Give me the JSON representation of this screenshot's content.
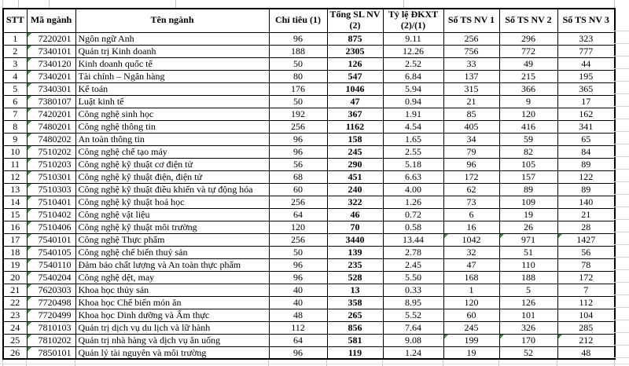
{
  "table": {
    "header": [
      "STT",
      "Mã ngành",
      "Tên ngành",
      "Chỉ tiêu (1)",
      "Tổng SL NV (2)",
      "Tỷ lệ ĐKXT (2)/(1)",
      "Số TS NV 1",
      "Số TS NV 2",
      "Số TS NV 3"
    ],
    "rows": [
      {
        "stt": "1",
        "code": "7220201",
        "name": "Ngôn ngữ Anh",
        "target": "96",
        "total": "875",
        "ratio": "9.11",
        "nv1": "256",
        "nv2": "296",
        "nv3": "323",
        "flag_nv": false
      },
      {
        "stt": "2",
        "code": "7340101",
        "name": "Quản trị Kinh doanh",
        "target": "188",
        "total": "2305",
        "ratio": "12.26",
        "nv1": "756",
        "nv2": "772",
        "nv3": "777",
        "flag_nv": false
      },
      {
        "stt": "3",
        "code": "7340120",
        "name": "Kinh doanh quốc tế",
        "target": "50",
        "total": "126",
        "ratio": "2.52",
        "nv1": "33",
        "nv2": "49",
        "nv3": "44",
        "flag_nv": false
      },
      {
        "stt": "4",
        "code": "7340201",
        "name": "Tài chính – Ngân hàng",
        "target": "80",
        "total": "547",
        "ratio": "6.84",
        "nv1": "137",
        "nv2": "215",
        "nv3": "195",
        "flag_nv": false
      },
      {
        "stt": "5",
        "code": "7340301",
        "name": "Kế toán",
        "target": "176",
        "total": "1046",
        "ratio": "5.94",
        "nv1": "315",
        "nv2": "366",
        "nv3": "365",
        "flag_nv": false
      },
      {
        "stt": "6",
        "code": "7380107",
        "name": "Luật kinh tế",
        "target": "50",
        "total": "47",
        "ratio": "0.94",
        "nv1": "21",
        "nv2": "9",
        "nv3": "17",
        "flag_nv": false
      },
      {
        "stt": "7",
        "code": "7420201",
        "name": "Công nghệ sinh học",
        "target": "192",
        "total": "367",
        "ratio": "1.91",
        "nv1": "85",
        "nv2": "120",
        "nv3": "162",
        "flag_nv": false
      },
      {
        "stt": "8",
        "code": "7480201",
        "name": "Công nghệ thông tin",
        "target": "256",
        "total": "1162",
        "ratio": "4.54",
        "nv1": "405",
        "nv2": "416",
        "nv3": "341",
        "flag_nv": false
      },
      {
        "stt": "9",
        "code": "7480202",
        "name": "An toàn thông tin",
        "target": "96",
        "total": "158",
        "ratio": "1.65",
        "nv1": "34",
        "nv2": "59",
        "nv3": "65",
        "flag_nv": false
      },
      {
        "stt": "10",
        "code": "7510202",
        "name": "Công nghệ chế tạo máy",
        "target": "96",
        "total": "245",
        "ratio": "2.55",
        "nv1": "79",
        "nv2": "82",
        "nv3": "84",
        "flag_nv": false
      },
      {
        "stt": "11",
        "code": "7510203",
        "name": "Công nghệ kỹ thuật cơ điện tử",
        "target": "56",
        "total": "290",
        "ratio": "5.18",
        "nv1": "96",
        "nv2": "105",
        "nv3": "89",
        "flag_nv": false
      },
      {
        "stt": "12",
        "code": "7510301",
        "name": "Công nghệ kỹ thuật điện, điện tử",
        "target": "68",
        "total": "451",
        "ratio": "6.63",
        "nv1": "172",
        "nv2": "157",
        "nv3": "122",
        "flag_nv": false
      },
      {
        "stt": "13",
        "code": "7510303",
        "name": "Công nghệ kỹ thuật điều khiển và tự động hóa",
        "target": "60",
        "total": "240",
        "ratio": "4.00",
        "nv1": "62",
        "nv2": "89",
        "nv3": "89",
        "flag_nv": false
      },
      {
        "stt": "14",
        "code": "7510401",
        "name": "Công nghệ kỹ thuật hoá học",
        "target": "256",
        "total": "322",
        "ratio": "1.26",
        "nv1": "73",
        "nv2": "109",
        "nv3": "140",
        "flag_nv": false
      },
      {
        "stt": "15",
        "code": "7510402",
        "name": "Công nghệ vật liệu",
        "target": "64",
        "total": "46",
        "ratio": "0.72",
        "nv1": "6",
        "nv2": "19",
        "nv3": "21",
        "flag_nv": false
      },
      {
        "stt": "16",
        "code": "7510406",
        "name": "Công nghệ kỹ thuật môi trường",
        "target": "120",
        "total": "70",
        "ratio": "0.58",
        "nv1": "16",
        "nv2": "26",
        "nv3": "28",
        "flag_nv": false
      },
      {
        "stt": "17",
        "code": "7540101",
        "name": "Công nghệ Thực phẩm",
        "target": "256",
        "total": "3440",
        "ratio": "13.44",
        "nv1": "1042",
        "nv2": "971",
        "nv3": "1427",
        "flag_nv": true
      },
      {
        "stt": "18",
        "code": "7540105",
        "name": "Công nghệ chế biến thuỷ sản",
        "target": "50",
        "total": "139",
        "ratio": "2.78",
        "nv1": "32",
        "nv2": "51",
        "nv3": "56",
        "flag_nv": false
      },
      {
        "stt": "19",
        "code": "7540110",
        "name": "Đảm bảo chất lượng và An toàn thực phẩm",
        "target": "96",
        "total": "235",
        "ratio": "2.45",
        "nv1": "47",
        "nv2": "110",
        "nv3": "78",
        "flag_nv": false
      },
      {
        "stt": "20",
        "code": "7540204",
        "name": "Công nghệ dệt, may",
        "target": "96",
        "total": "528",
        "ratio": "5.50",
        "nv1": "168",
        "nv2": "188",
        "nv3": "172",
        "flag_nv": false
      },
      {
        "stt": "21",
        "code": "7620303",
        "name": "Khoa học thủy sản",
        "target": "40",
        "total": "13",
        "ratio": "0.33",
        "nv1": "1",
        "nv2": "5",
        "nv3": "7",
        "flag_nv": false
      },
      {
        "stt": "22",
        "code": "7720498",
        "name": "Khoa học Chế biến món ăn",
        "target": "40",
        "total": "358",
        "ratio": "8.95",
        "nv1": "120",
        "nv2": "126",
        "nv3": "112",
        "flag_nv": false
      },
      {
        "stt": "23",
        "code": "7720499",
        "name": "Khoa học Dinh dưỡng và Ẩm thực",
        "target": "48",
        "total": "265",
        "ratio": "5.52",
        "nv1": "60",
        "nv2": "101",
        "nv3": "104",
        "flag_nv": false
      },
      {
        "stt": "24",
        "code": "7810103",
        "name": "Quản trị dịch vụ du lịch và lữ hành",
        "target": "112",
        "total": "856",
        "ratio": "7.64",
        "nv1": "245",
        "nv2": "326",
        "nv3": "285",
        "flag_nv": false
      },
      {
        "stt": "25",
        "code": "7810202",
        "name": "Quản trị nhà hàng và dịch vụ ăn uống",
        "target": "64",
        "total": "581",
        "ratio": "9.08",
        "nv1": "199",
        "nv2": "170",
        "nv3": "212",
        "flag_nv": true
      },
      {
        "stt": "26",
        "code": "7850101",
        "name": "Quản lý tài nguyên và môi trường",
        "target": "96",
        "total": "119",
        "ratio": "1.24",
        "nv1": "19",
        "nv2": "52",
        "nv3": "48",
        "flag_nv": false
      }
    ]
  },
  "icons": {
    "error_indicator": "green-corner-triangle"
  },
  "colors": {
    "border": "#000000",
    "error_indicator": "#2e8b2e",
    "faint_grid": "#c3c3c3",
    "background": "#ffffff"
  }
}
